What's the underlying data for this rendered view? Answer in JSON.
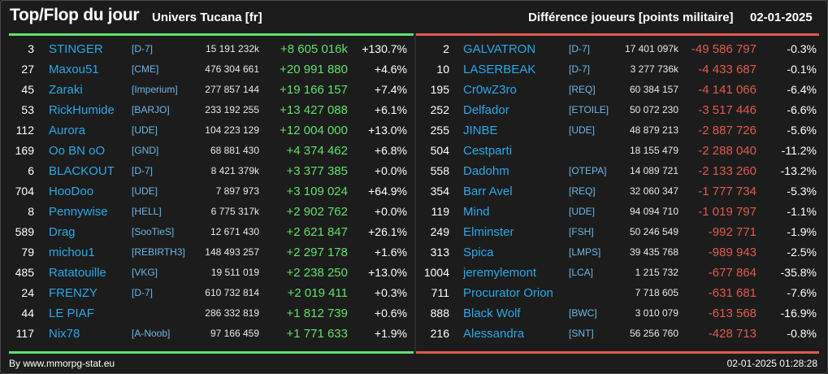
{
  "header": {
    "title": "Top/Flop du jour",
    "universe": "Univers Tucana [fr]",
    "subtitle": "Différence joueurs [points militaire]",
    "date": "02-01-2025"
  },
  "colors": {
    "gain": "#5fe16a",
    "loss": "#e05a4e",
    "name": "#29a9e8",
    "background": "#1c1c1c"
  },
  "top": [
    {
      "rank": "3",
      "name": "STINGER",
      "alliance": "[D-7]",
      "points": "15 191 232k",
      "diff": "+8 605 016k",
      "pct": "+130.7%"
    },
    {
      "rank": "27",
      "name": "Maxou51",
      "alliance": "[CME]",
      "points": "476 304 661",
      "diff": "+20 991 880",
      "pct": "+4.6%"
    },
    {
      "rank": "45",
      "name": "Zaraki",
      "alliance": "[Imperium]",
      "points": "277 857 144",
      "diff": "+19 166 157",
      "pct": "+7.4%"
    },
    {
      "rank": "53",
      "name": "RickHumide",
      "alliance": "[BARJO]",
      "points": "233 192 255",
      "diff": "+13 427 088",
      "pct": "+6.1%"
    },
    {
      "rank": "112",
      "name": "Aurora",
      "alliance": "[UDE]",
      "points": "104 223 129",
      "diff": "+12 004 000",
      "pct": "+13.0%"
    },
    {
      "rank": "169",
      "name": "Oo BN oO",
      "alliance": "[GND]",
      "points": "68 881 430",
      "diff": "+4 374 462",
      "pct": "+6.8%"
    },
    {
      "rank": "6",
      "name": "BLACKOUT",
      "alliance": "[D-7]",
      "points": "8 421 379k",
      "diff": "+3 377 385",
      "pct": "+0.0%"
    },
    {
      "rank": "704",
      "name": "HooDoo",
      "alliance": "[UDE]",
      "points": "7 897 973",
      "diff": "+3 109 024",
      "pct": "+64.9%"
    },
    {
      "rank": "8",
      "name": "Pennywise",
      "alliance": "[HELL]",
      "points": "6 775 317k",
      "diff": "+2 902 762",
      "pct": "+0.0%"
    },
    {
      "rank": "589",
      "name": "Drag",
      "alliance": "[SooTieS]",
      "points": "12 671 430",
      "diff": "+2 621 847",
      "pct": "+26.1%"
    },
    {
      "rank": "79",
      "name": "michou1",
      "alliance": "[REBIRTH3]",
      "points": "148 493 257",
      "diff": "+2 297 178",
      "pct": "+1.6%"
    },
    {
      "rank": "485",
      "name": "Ratatouille",
      "alliance": "[VKG]",
      "points": "19 511 019",
      "diff": "+2 238 250",
      "pct": "+13.0%"
    },
    {
      "rank": "24",
      "name": "FRENZY",
      "alliance": "[D-7]",
      "points": "610 732 814",
      "diff": "+2 019 411",
      "pct": "+0.3%"
    },
    {
      "rank": "44",
      "name": "LE PIAF",
      "alliance": "",
      "points": "286 332 819",
      "diff": "+1 812 739",
      "pct": "+0.6%"
    },
    {
      "rank": "117",
      "name": "Nix78",
      "alliance": "[A-Noob]",
      "points": "97 166 459",
      "diff": "+1 771 633",
      "pct": "+1.9%"
    }
  ],
  "flop": [
    {
      "rank": "2",
      "name": "GALVATRON",
      "alliance": "[D-7]",
      "points": "17 401 097k",
      "diff": "-49 586 797",
      "pct": "-0.3%"
    },
    {
      "rank": "10",
      "name": "LASERBEAK",
      "alliance": "[D-7]",
      "points": "3 277 736k",
      "diff": "-4 433 687",
      "pct": "-0.1%"
    },
    {
      "rank": "195",
      "name": "Cr0wZ3ro",
      "alliance": "[REQ]",
      "points": "60 384 157",
      "diff": "-4 141 066",
      "pct": "-6.4%"
    },
    {
      "rank": "252",
      "name": "Delfador",
      "alliance": "[ETOILE]",
      "points": "50 072 230",
      "diff": "-3 517 446",
      "pct": "-6.6%"
    },
    {
      "rank": "255",
      "name": "JINBE",
      "alliance": "[UDE]",
      "points": "48 879 213",
      "diff": "-2 887 726",
      "pct": "-5.6%"
    },
    {
      "rank": "504",
      "name": "Cestparti",
      "alliance": "",
      "points": "18 155 479",
      "diff": "-2 288 040",
      "pct": "-11.2%"
    },
    {
      "rank": "558",
      "name": "Dadohm",
      "alliance": "[OTEPA]",
      "points": "14 089 721",
      "diff": "-2 133 260",
      "pct": "-13.2%"
    },
    {
      "rank": "354",
      "name": "Barr Avel",
      "alliance": "[REQ]",
      "points": "32 060 347",
      "diff": "-1 777 734",
      "pct": "-5.3%"
    },
    {
      "rank": "119",
      "name": "Mind",
      "alliance": "[UDE]",
      "points": "94 094 710",
      "diff": "-1 019 797",
      "pct": "-1.1%"
    },
    {
      "rank": "249",
      "name": "Elminster",
      "alliance": "[FSH]",
      "points": "50 246 549",
      "diff": "-992 771",
      "pct": "-1.9%"
    },
    {
      "rank": "313",
      "name": "Spica",
      "alliance": "[LMPS]",
      "points": "39 435 768",
      "diff": "-989 943",
      "pct": "-2.5%"
    },
    {
      "rank": "1004",
      "name": "jeremylemont",
      "alliance": "[LCA]",
      "points": "1 215 732",
      "diff": "-677 864",
      "pct": "-35.8%"
    },
    {
      "rank": "711",
      "name": "Procurator Orion",
      "alliance": "",
      "points": "7 718 605",
      "diff": "-631 681",
      "pct": "-7.6%"
    },
    {
      "rank": "888",
      "name": "Black Wolf",
      "alliance": "[BWC]",
      "points": "3 010 079",
      "diff": "-613 568",
      "pct": "-16.9%"
    },
    {
      "rank": "216",
      "name": "Alessandra",
      "alliance": "[SNT]",
      "points": "56 256 760",
      "diff": "-428 713",
      "pct": "-0.8%"
    }
  ],
  "footer": {
    "source": "By www.mmorpg-stat.eu",
    "timestamp": "02-01-2025 01:28:28"
  }
}
